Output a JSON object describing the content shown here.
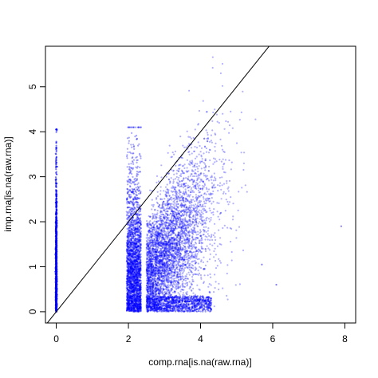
{
  "chart_data": {
    "type": "scatter",
    "title": "",
    "xlabel": "comp.rna[is.na(raw.rna)]",
    "ylabel": "imp.rna[is.na(raw.rna)]",
    "xlim": [
      -0.3,
      8.3
    ],
    "ylim": [
      -0.25,
      5.9
    ],
    "x_ticks": [
      "0",
      "2",
      "4",
      "6",
      "8"
    ],
    "y_ticks": [
      "0",
      "1",
      "2",
      "3",
      "4",
      "5"
    ],
    "grid": false,
    "legend": "none",
    "point_color": "#0000ff",
    "reference_line": {
      "type": "identity",
      "slope": 1,
      "intercept": 0,
      "color": "#000000"
    },
    "clusters": [
      {
        "x": 0.0,
        "x_spread": 0.01,
        "y_range": [
          0.0,
          4.05
        ],
        "note_density": "very high near 0-3.5"
      },
      {
        "x_range": [
          1.95,
          2.35
        ],
        "y_range": [
          0.0,
          4.1
        ],
        "note_density": "very high"
      },
      {
        "x_range": [
          2.5,
          5.5
        ],
        "y_range": [
          0.0,
          5.7
        ],
        "note_density": "high, trending upward"
      }
    ],
    "outliers": [
      {
        "x": 5.7,
        "y": 1.05
      },
      {
        "x": 7.9,
        "y": 1.9
      },
      {
        "x": 6.1,
        "y": 0.6
      }
    ]
  }
}
